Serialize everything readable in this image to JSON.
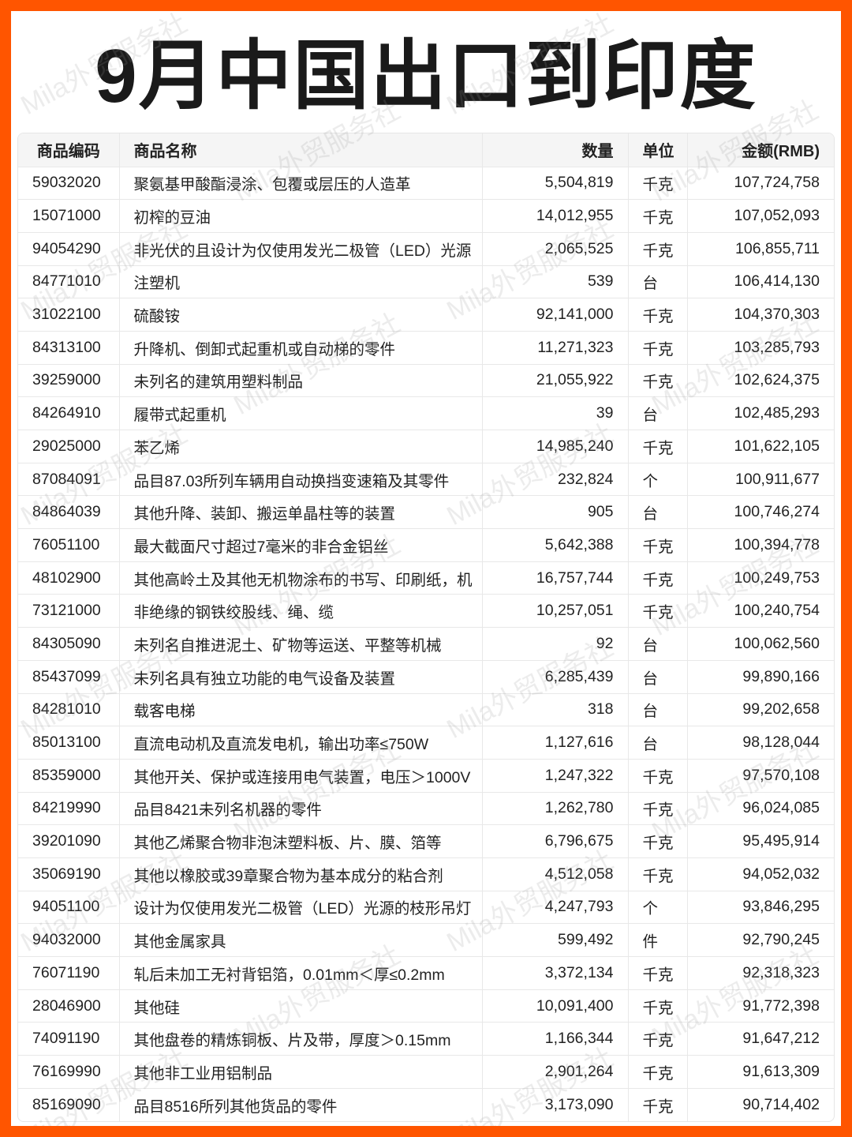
{
  "title": "9月中国出口到印度",
  "watermark": "Mila外贸服务社",
  "colors": {
    "border": "#ff5500",
    "header_bg": "#f5f5f5"
  },
  "table": {
    "headers": [
      "商品编码",
      "商品名称",
      "数量",
      "单位",
      "金额(RMB)"
    ],
    "rows": [
      [
        "59032020",
        "聚氨基甲酸酯浸涂、包覆或层压的人造革",
        "5,504,819",
        "千克",
        "107,724,758"
      ],
      [
        "15071000",
        "初榨的豆油",
        "14,012,955",
        "千克",
        "107,052,093"
      ],
      [
        "94054290",
        "非光伏的且设计为仅使用发光二极管（LED）光源",
        "2,065,525",
        "千克",
        "106,855,711"
      ],
      [
        "84771010",
        "注塑机",
        "539",
        "台",
        "106,414,130"
      ],
      [
        "31022100",
        "硫酸铵",
        "92,141,000",
        "千克",
        "104,370,303"
      ],
      [
        "84313100",
        "升降机、倒卸式起重机或自动梯的零件",
        "11,271,323",
        "千克",
        "103,285,793"
      ],
      [
        "39259000",
        "未列名的建筑用塑料制品",
        "21,055,922",
        "千克",
        "102,624,375"
      ],
      [
        "84264910",
        "履带式起重机",
        "39",
        "台",
        "102,485,293"
      ],
      [
        "29025000",
        "苯乙烯",
        "14,985,240",
        "千克",
        "101,622,105"
      ],
      [
        "87084091",
        "品目87.03所列车辆用自动换挡变速箱及其零件",
        "232,824",
        "个",
        "100,911,677"
      ],
      [
        "84864039",
        "其他升降、装卸、搬运单晶柱等的装置",
        "905",
        "台",
        "100,746,274"
      ],
      [
        "76051100",
        "最大截面尺寸超过7毫米的非合金铝丝",
        "5,642,388",
        "千克",
        "100,394,778"
      ],
      [
        "48102900",
        "其他高岭土及其他无机物涂布的书写、印刷纸，机",
        "16,757,744",
        "千克",
        "100,249,753"
      ],
      [
        "73121000",
        "非绝缘的钢铁绞股线、绳、缆",
        "10,257,051",
        "千克",
        "100,240,754"
      ],
      [
        "84305090",
        "未列名自推进泥土、矿物等运送、平整等机械",
        "92",
        "台",
        "100,062,560"
      ],
      [
        "85437099",
        "未列名具有独立功能的电气设备及装置",
        "6,285,439",
        "台",
        "99,890,166"
      ],
      [
        "84281010",
        "载客电梯",
        "318",
        "台",
        "99,202,658"
      ],
      [
        "85013100",
        "直流电动机及直流发电机，输出功率≤750W",
        "1,127,616",
        "台",
        "98,128,044"
      ],
      [
        "85359000",
        "其他开关、保护或连接用电气装置，电压＞1000V",
        "1,247,322",
        "千克",
        "97,570,108"
      ],
      [
        "84219990",
        "品目8421未列名机器的零件",
        "1,262,780",
        "千克",
        "96,024,085"
      ],
      [
        "39201090",
        "其他乙烯聚合物非泡沫塑料板、片、膜、箔等",
        "6,796,675",
        "千克",
        "95,495,914"
      ],
      [
        "35069190",
        "其他以橡胶或39章聚合物为基本成分的粘合剂",
        "4,512,058",
        "千克",
        "94,052,032"
      ],
      [
        "94051100",
        "设计为仅使用发光二极管（LED）光源的枝形吊灯",
        "4,247,793",
        "个",
        "93,846,295"
      ],
      [
        "94032000",
        "其他金属家具",
        "599,492",
        "件",
        "92,790,245"
      ],
      [
        "76071190",
        "轧后未加工无衬背铝箔，0.01mm＜厚≤0.2mm",
        "3,372,134",
        "千克",
        "92,318,323"
      ],
      [
        "28046900",
        "其他硅",
        "10,091,400",
        "千克",
        "91,772,398"
      ],
      [
        "74091190",
        "其他盘卷的精炼铜板、片及带，厚度＞0.15mm",
        "1,166,344",
        "千克",
        "91,647,212"
      ],
      [
        "76169990",
        "其他非工业用铝制品",
        "2,901,264",
        "千克",
        "91,613,309"
      ],
      [
        "85169090",
        "品目8516所列其他货品的零件",
        "3,173,090",
        "千克",
        "90,714,402"
      ]
    ]
  }
}
